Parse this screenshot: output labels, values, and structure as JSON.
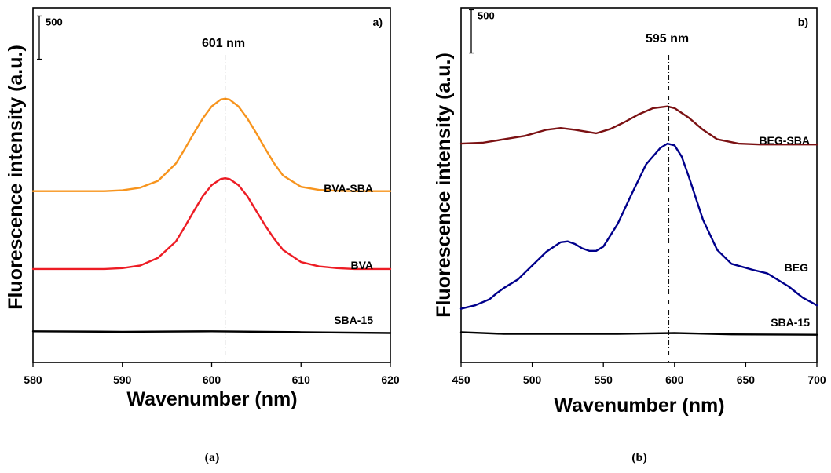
{
  "chart_data": [
    {
      "type": "line",
      "panel": "a)",
      "caption": "(a)",
      "xlabel": "Wavenumber (nm)",
      "ylabel": "Fluorescence intensity (a.u.)",
      "xlim": [
        580,
        620
      ],
      "xticks": [
        580,
        590,
        600,
        610,
        620
      ],
      "ylim": [
        -400,
        3700
      ],
      "grid": false,
      "scale_bar": {
        "label": "500",
        "value": 500
      },
      "peak_marker": {
        "x": 601.5,
        "label": "601 nm"
      },
      "series": [
        {
          "name": "BVA-SBA",
          "color": "#f7941d",
          "x": [
            580,
            584,
            588,
            590,
            592,
            594,
            596,
            597,
            598,
            599,
            600,
            601,
            601.5,
            602,
            603,
            604,
            605,
            606,
            607,
            608,
            610,
            612,
            614,
            616,
            618,
            620
          ],
          "y": [
            1580,
            1580,
            1580,
            1590,
            1620,
            1700,
            1900,
            2070,
            2250,
            2420,
            2560,
            2640,
            2650,
            2640,
            2560,
            2420,
            2250,
            2070,
            1900,
            1760,
            1630,
            1595,
            1585,
            1580,
            1580,
            1580
          ]
        },
        {
          "name": "BVA",
          "color": "#ed1c24",
          "x": [
            580,
            584,
            588,
            590,
            592,
            594,
            596,
            597,
            598,
            599,
            600,
            601,
            601.5,
            602,
            603,
            604,
            605,
            606,
            607,
            608,
            610,
            612,
            614,
            616,
            618,
            620
          ],
          "y": [
            680,
            680,
            680,
            690,
            720,
            810,
            1000,
            1170,
            1350,
            1520,
            1650,
            1720,
            1730,
            1720,
            1650,
            1520,
            1350,
            1180,
            1030,
            900,
            760,
            710,
            690,
            680,
            680,
            680
          ]
        },
        {
          "name": "SBA-15",
          "color": "#000000",
          "x": [
            580,
            590,
            600,
            610,
            620
          ],
          "y": [
            -40,
            -45,
            -40,
            -50,
            -60
          ]
        }
      ]
    },
    {
      "type": "line",
      "panel": "b)",
      "caption": "(b)",
      "xlabel": "Wavenumber (nm)",
      "ylabel": "Fluorescence intensity (a.u.)",
      "xlim": [
        450,
        700
      ],
      "xticks": [
        450,
        500,
        550,
        600,
        650,
        700
      ],
      "ylim": [
        -300,
        3800
      ],
      "grid": false,
      "scale_bar": {
        "label": "500",
        "value": 500
      },
      "peak_marker": {
        "x": 596,
        "label": "595 nm"
      },
      "series": [
        {
          "name": "BEG-SBA",
          "color": "#7b1113",
          "x": [
            450,
            465,
            480,
            495,
            510,
            520,
            530,
            545,
            555,
            565,
            575,
            585,
            595,
            600,
            610,
            620,
            630,
            645,
            660,
            680,
            700
          ],
          "y": [
            2230,
            2240,
            2280,
            2320,
            2390,
            2410,
            2390,
            2350,
            2400,
            2480,
            2570,
            2640,
            2660,
            2640,
            2530,
            2390,
            2280,
            2230,
            2220,
            2220,
            2220
          ]
        },
        {
          "name": "BEG",
          "color": "#00008b",
          "x": [
            450,
            460,
            470,
            475,
            480,
            490,
            495,
            500,
            510,
            520,
            525,
            530,
            535,
            540,
            545,
            550,
            560,
            570,
            580,
            590,
            595,
            600,
            605,
            610,
            620,
            630,
            640,
            655,
            665,
            680,
            690,
            700
          ],
          "y": [
            320,
            360,
            430,
            500,
            560,
            660,
            740,
            820,
            980,
            1090,
            1100,
            1070,
            1020,
            990,
            990,
            1040,
            1300,
            1650,
            1990,
            2180,
            2230,
            2210,
            2080,
            1850,
            1350,
            1000,
            840,
            770,
            730,
            580,
            450,
            360
          ]
        },
        {
          "name": "SBA-15",
          "color": "#000000",
          "x": [
            450,
            480,
            520,
            560,
            600,
            640,
            700
          ],
          "y": [
            50,
            30,
            30,
            30,
            40,
            25,
            20
          ]
        }
      ]
    }
  ]
}
